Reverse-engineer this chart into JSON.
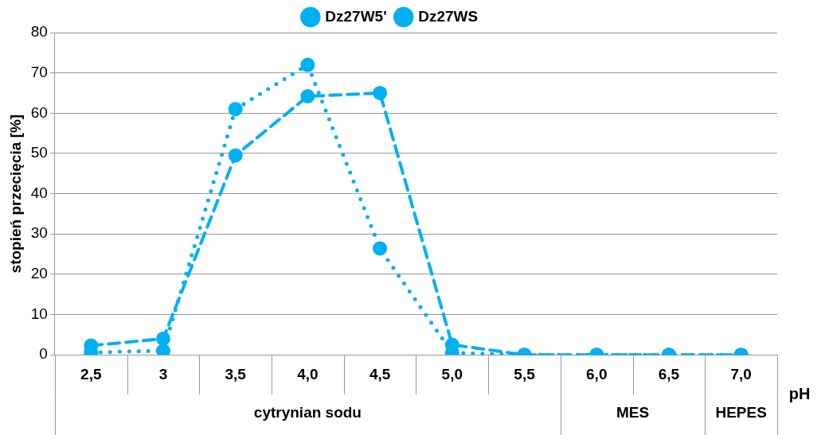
{
  "chart_data": {
    "type": "line",
    "ylabel": "stopień przecięcia [%]",
    "xlabel": "pH",
    "categories": [
      "2,5",
      "3",
      "3,5",
      "4,0",
      "4,5",
      "5,0",
      "5,5",
      "6,0",
      "6,5",
      "7,0"
    ],
    "series": [
      {
        "name": "Dz27W5'",
        "color": "#00b0f0",
        "line_style": "dotted",
        "values": [
          0.6,
          1,
          61,
          72,
          26.4,
          0.5,
          0,
          0,
          0,
          0
        ]
      },
      {
        "name": "Dz27WS",
        "color": "#00b0f0",
        "line_style": "dashed",
        "values": [
          2.3,
          4,
          49.5,
          64.2,
          65,
          2.5,
          0,
          0,
          0,
          0
        ]
      }
    ],
    "ylim": [
      0,
      80
    ],
    "yticks": [
      0,
      10,
      20,
      30,
      40,
      50,
      60,
      70,
      80
    ],
    "grid": "y",
    "legend": "top",
    "marker": "circle",
    "annotations": [
      "cytrynian sodu",
      "MES",
      "HEPES"
    ]
  }
}
